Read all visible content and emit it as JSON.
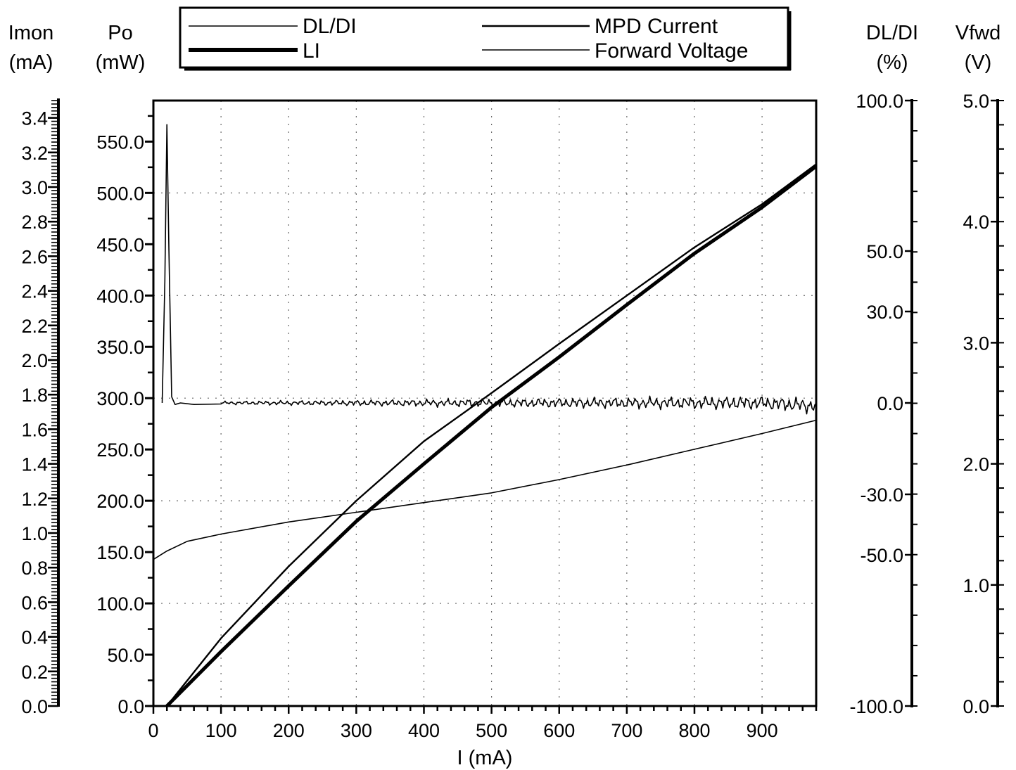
{
  "chart_data": {
    "type": "line",
    "xlabel": "I (mA)",
    "xlim": [
      0,
      980
    ],
    "x_ticks": [
      0,
      100,
      200,
      300,
      400,
      500,
      600,
      700,
      800,
      900
    ],
    "grid": true,
    "legend_placement": "top-center",
    "axes": {
      "imon": {
        "label_line1": "Imon",
        "label_line2": "(mA)",
        "range": [
          0,
          3.5
        ],
        "ticks": [
          "0.0",
          "0.2",
          "0.4",
          "0.6",
          "0.8",
          "1.0",
          "1.2",
          "1.4",
          "1.6",
          "1.8",
          "2.0",
          "2.2",
          "2.4",
          "2.6",
          "2.8",
          "3.0",
          "3.2",
          "3.4"
        ]
      },
      "po": {
        "label_line1": "Po",
        "label_line2": "(mW)",
        "range": [
          0,
          590
        ],
        "ticks": [
          "0.0",
          "50.0",
          "100.0",
          "150.0",
          "200.0",
          "250.0",
          "300.0",
          "350.0",
          "400.0",
          "450.0",
          "500.0",
          "550.0"
        ]
      },
      "dldi": {
        "label_line1": "DL/DI",
        "label_line2": "(%)",
        "ticks": [
          "100.0",
          "50.0",
          "30.0",
          "0.0",
          "-30.0",
          "-50.0",
          "-100.0"
        ]
      },
      "vfwd": {
        "label_line1": "Vfwd",
        "label_line2": "(V)",
        "range": [
          0,
          5
        ],
        "ticks": [
          "0.0",
          "1.0",
          "2.0",
          "3.0",
          "4.0",
          "5.0"
        ]
      }
    },
    "legend": [
      {
        "name": "DL/DI",
        "weight": "thin"
      },
      {
        "name": "MPD Current",
        "weight": "medium"
      },
      {
        "name": "LI",
        "weight": "thick"
      },
      {
        "name": "Forward Voltage",
        "weight": "thin"
      }
    ],
    "series": [
      {
        "name": "LI",
        "axis": "po",
        "weight": "thick",
        "x": [
          20,
          100,
          200,
          300,
          400,
          500,
          600,
          700,
          800,
          900,
          980
        ],
        "y": [
          0,
          53,
          117,
          180,
          236,
          291,
          340,
          391,
          441,
          486,
          526
        ]
      },
      {
        "name": "MPD Current",
        "axis": "po",
        "weight": "medium",
        "x": [
          20,
          100,
          200,
          300,
          400,
          500,
          600,
          700,
          800,
          900,
          980
        ],
        "y": [
          0,
          66,
          136,
          200,
          258,
          305,
          353,
          400,
          447,
          489,
          528
        ]
      },
      {
        "name": "Forward Voltage",
        "axis": "vfwd",
        "weight": "thin",
        "x": [
          0,
          20,
          50,
          100,
          200,
          300,
          400,
          500,
          600,
          700,
          800,
          900,
          980
        ],
        "y": [
          1.21,
          1.28,
          1.36,
          1.42,
          1.52,
          1.6,
          1.68,
          1.76,
          1.87,
          1.99,
          2.12,
          2.25,
          2.36
        ]
      },
      {
        "name": "DL/DI",
        "axis": "dldi",
        "weight": "thin",
        "x": [
          13,
          17,
          20,
          23,
          27,
          32,
          40,
          60,
          100,
          200,
          300,
          400,
          500,
          600,
          700,
          800,
          900,
          980
        ],
        "y": [
          0.0,
          40.0,
          92.0,
          50.0,
          2.0,
          -0.5,
          0.0,
          -0.5,
          0.0,
          0.0,
          0.0,
          0.0,
          0.0,
          0.0,
          0.0,
          0.0,
          0.0,
          -1.0
        ],
        "ripple_from_x": 100
      }
    ]
  }
}
